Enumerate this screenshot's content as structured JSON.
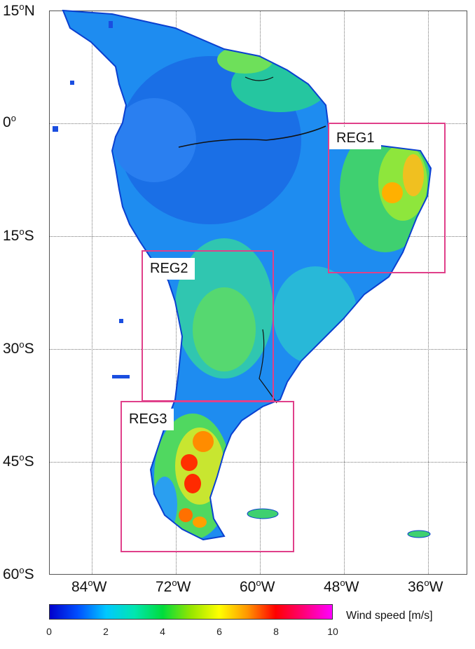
{
  "lat_labels": [
    {
      "deg": "15",
      "hem": "N"
    },
    {
      "deg": "0",
      "hem": ""
    },
    {
      "deg": "15",
      "hem": "S"
    },
    {
      "deg": "30",
      "hem": "S"
    },
    {
      "deg": "45",
      "hem": "S"
    },
    {
      "deg": "60",
      "hem": "S"
    }
  ],
  "lon_labels": [
    {
      "deg": "84",
      "hem": "W"
    },
    {
      "deg": "72",
      "hem": "W"
    },
    {
      "deg": "60",
      "hem": "W"
    },
    {
      "deg": "48",
      "hem": "W"
    },
    {
      "deg": "36",
      "hem": "W"
    }
  ],
  "regions": [
    {
      "name": "REG1",
      "color": "#e0408a"
    },
    {
      "name": "REG2",
      "color": "#e0408a"
    },
    {
      "name": "REG3",
      "color": "#e0408a"
    }
  ],
  "colorbar": {
    "label": "Wind speed [m/s]",
    "ticks": [
      "0",
      "2",
      "4",
      "6",
      "8",
      "10"
    ],
    "colors": [
      "#0000cc",
      "#00c8ff",
      "#00dc3c",
      "#ffff00",
      "#ff0000",
      "#ff00ff"
    ]
  }
}
